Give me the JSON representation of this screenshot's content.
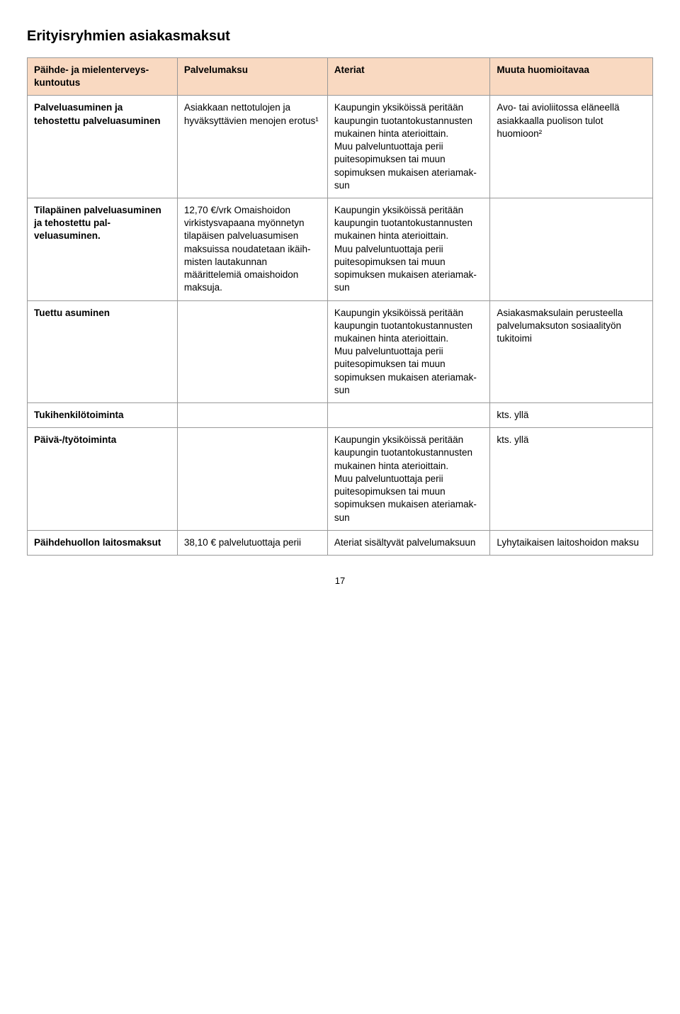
{
  "title": "Erityisryhmien asiakasmaksut",
  "header": {
    "col1": "Päihde- ja mielenterveys­kuntoutus",
    "col2": "Palvelumaksu",
    "col3": "Ateriat",
    "col4": "Muuta huomioitavaa"
  },
  "rows": [
    {
      "label": "Palveluasuminen ja tehostettu palveluasuminen",
      "c2": "Asiakkaan nettotulo­jen ja hyväksyttävien menojen erotus¹",
      "c3": "Kaupungin yksiköissä peritään kaupungin tuotantokustannusten mukainen hinta ate­rioittain.\nMuu palveluntuottaja perii puitesopimuksen tai muun sopimuksen mukaisen ateriamak­sun",
      "c4": "Avo- tai avioliitossa elä­neellä asiakkaalla puolison tulot huomioon²"
    },
    {
      "label": "Tilapäinen palvelu­asuminen ja tehostettu pal­veluasuminen.",
      "c2": "12,70 €/vrk Omais­hoidon virkistysva­paana myönnetyn tilapäisen palvelu­asumisen maksuissa noudatetaan ikäih­misten lautakunnan määrittelemiä omaishoidon maksuja.",
      "c3": "Kaupungin yksiköissä peritään kaupungin tuotantokustannusten mukainen hinta ate­rioittain.\nMuu palveluntuottaja perii puitesopimuksen tai muun sopimuksen mukaisen ateriamak­sun",
      "c4": ""
    },
    {
      "label": "Tuettu asuminen",
      "c2": "",
      "c3": "Kaupungin yksiköissä peritään kaupungin tuotantokustannusten mukainen hinta ate­rioittain.\nMuu palveluntuottaja perii puitesopimuksen tai muun sopimuksen mukaisen ateriamak­sun",
      "c4": "Asiakasmaksulain perus­teella palvelumaksuton sosiaalityön tukitoimi"
    },
    {
      "label": "Tukihenkilötoiminta",
      "c2": "",
      "c3": "",
      "c4": "kts. yllä"
    },
    {
      "label": "Päivä-/työtoiminta",
      "c2": "",
      "c3": "Kaupungin yksiköissä peritään kaupungin tuotantokustannusten mukainen hinta ate­rioittain.\nMuu palveluntuottaja perii puitesopimuksen tai muun sopimuksen mukaisen ateriamak­sun",
      "c4": "kts. yllä"
    },
    {
      "label": "Päihdehuollon laitosmaksut",
      "c2": "38,10 € palvelutuot­taja perii",
      "c3": "Ateriat sisältyvät pal­velumaksuun",
      "c4": "Lyhytaikaisen laitoshoidon maksu"
    }
  ],
  "page_number": "17",
  "colors": {
    "header_bg": "#f9d9c1",
    "border": "#999999",
    "text": "#000000",
    "background": "#ffffff"
  }
}
